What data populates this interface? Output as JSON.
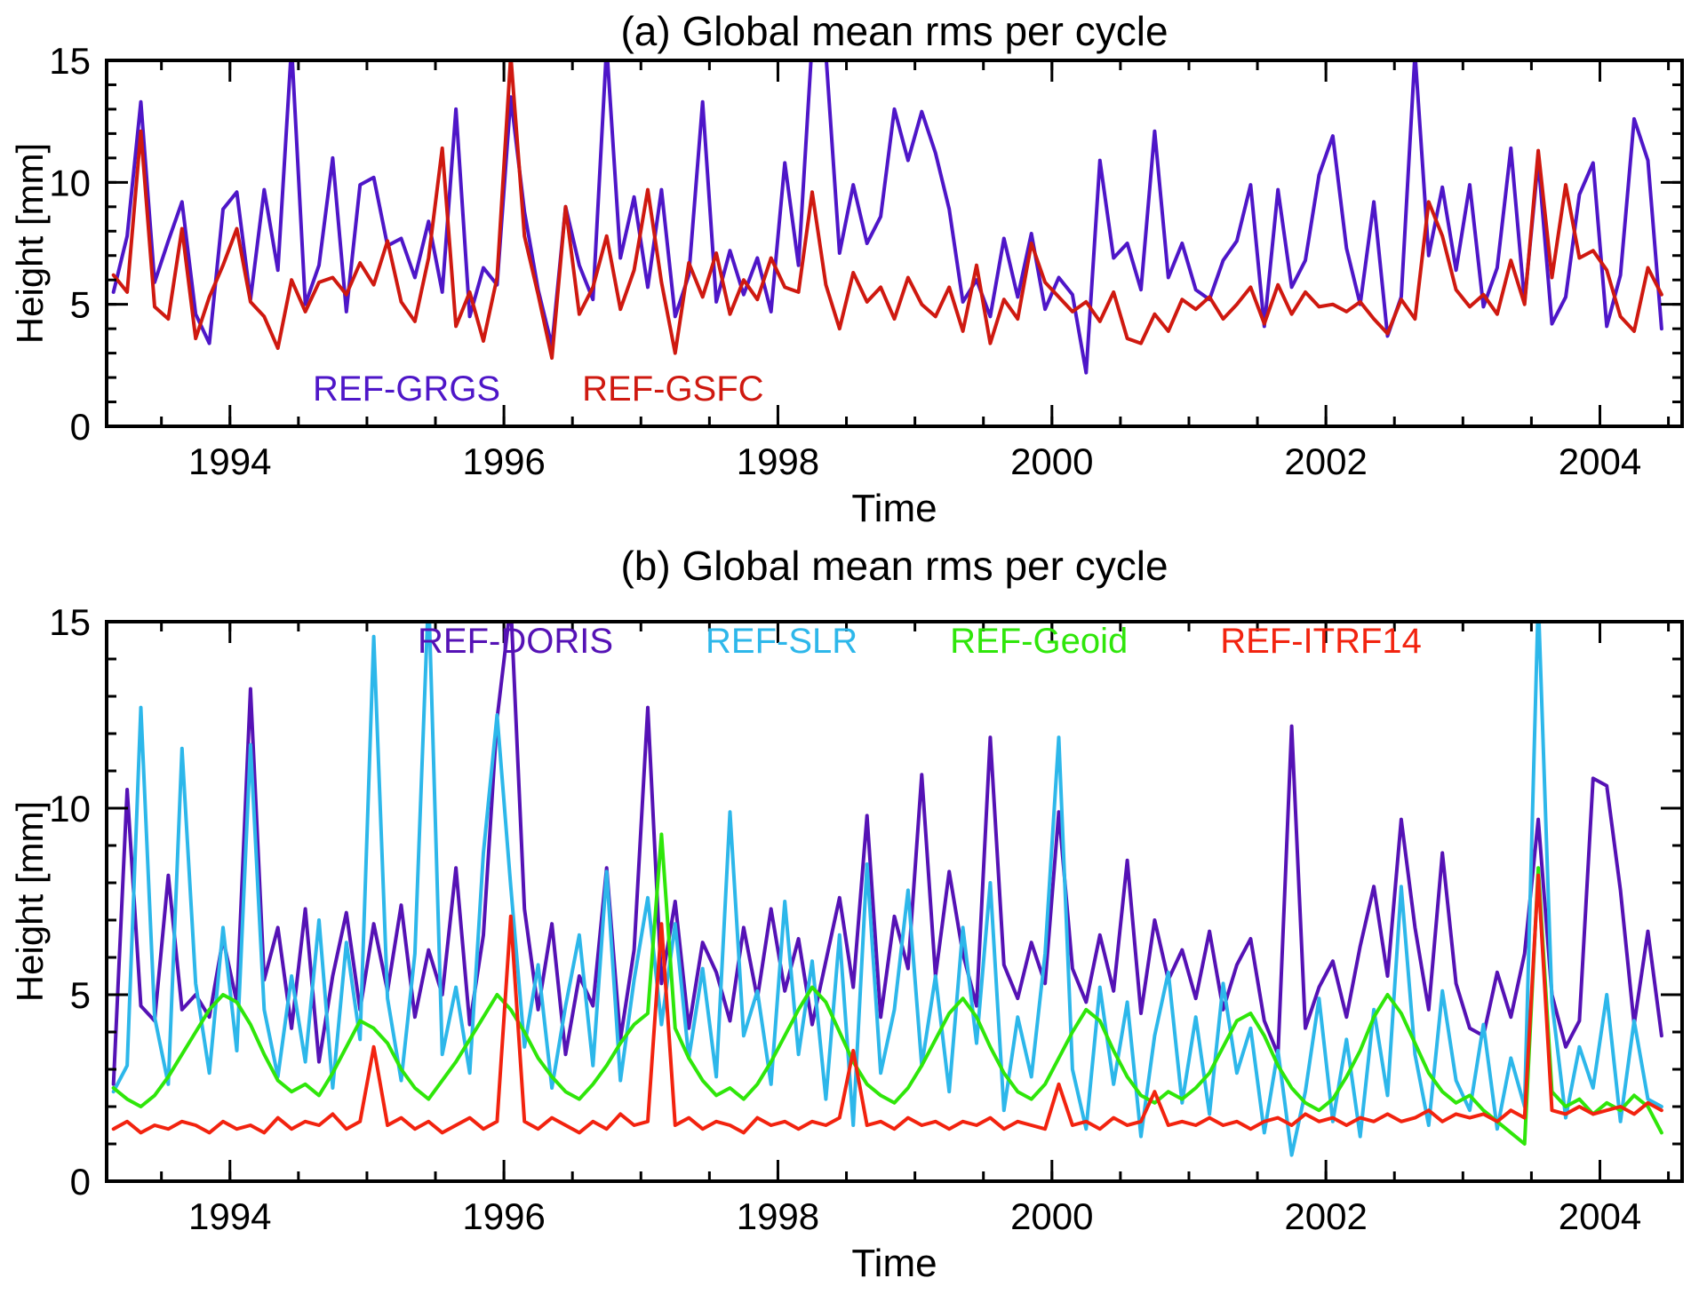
{
  "figure": {
    "panel_a": {
      "title": "(a) Global mean rms per cycle",
      "xlabel": "Time",
      "ylabel": "Height [mm]"
    },
    "panel_b": {
      "title": "(b) Global mean rms per cycle",
      "xlabel": "Time",
      "ylabel": "Height [mm]"
    }
  },
  "chart_data": [
    {
      "type": "line",
      "title": "(a) Global mean rms per cycle",
      "xlabel": "Time",
      "ylabel": "Height [mm]",
      "xlim": [
        1993.1,
        2004.6
      ],
      "ylim": [
        0,
        15
      ],
      "xticks": [
        1994,
        1996,
        1998,
        2000,
        2002,
        2004
      ],
      "xminor_step": 0.5,
      "yticks": [
        0,
        5,
        10,
        15
      ],
      "yminor_step": 1,
      "x_start": 1993.15,
      "x_step": 0.1,
      "grid": false,
      "legend_position": "inside-bottom",
      "series": [
        {
          "name": "REF-GRGS",
          "color": "#4e16c8",
          "values": [
            5.5,
            7.8,
            13.3,
            5.9,
            7.6,
            9.2,
            4.6,
            3.4,
            8.9,
            9.6,
            5.2,
            9.7,
            6.4,
            15.6,
            5.0,
            6.6,
            11.0,
            4.7,
            9.9,
            10.2,
            7.4,
            7.7,
            6.1,
            8.4,
            5.5,
            13.0,
            4.5,
            6.5,
            5.8,
            13.5,
            8.8,
            5.6,
            3.3,
            9.0,
            6.6,
            5.2,
            15.6,
            6.9,
            9.4,
            5.7,
            9.7,
            4.5,
            6.2,
            13.3,
            5.1,
            7.2,
            5.4,
            6.9,
            4.7,
            10.8,
            6.6,
            15.8,
            15.3,
            7.1,
            9.9,
            7.5,
            8.6,
            13.0,
            10.9,
            12.9,
            11.2,
            8.9,
            5.1,
            6.0,
            4.5,
            7.7,
            5.3,
            7.9,
            4.8,
            6.1,
            5.4,
            2.2,
            10.9,
            6.9,
            7.5,
            5.6,
            12.1,
            6.1,
            7.5,
            5.6,
            5.2,
            6.8,
            7.6,
            9.9,
            4.1,
            9.7,
            5.7,
            6.8,
            10.3,
            11.9,
            7.3,
            5.0,
            9.2,
            3.7,
            5.3,
            15.3,
            7.0,
            9.8,
            6.4,
            9.9,
            4.9,
            6.5,
            11.4,
            5.1,
            10.9,
            4.2,
            5.3,
            9.5,
            10.8,
            4.1,
            6.2,
            12.6,
            10.9,
            4.0
          ]
        },
        {
          "name": "REF-GSFC",
          "color": "#cf1910",
          "values": [
            6.2,
            5.5,
            12.1,
            4.9,
            4.4,
            8.1,
            3.6,
            5.3,
            6.6,
            8.1,
            5.1,
            4.5,
            3.2,
            6.0,
            4.7,
            5.9,
            6.1,
            5.4,
            6.7,
            5.8,
            7.6,
            5.1,
            4.3,
            6.9,
            11.4,
            4.1,
            5.5,
            3.5,
            6.1,
            15.2,
            7.8,
            5.4,
            2.8,
            9.0,
            4.6,
            5.7,
            7.8,
            4.8,
            6.4,
            9.7,
            5.9,
            3.0,
            6.7,
            5.3,
            7.1,
            4.6,
            6.0,
            5.2,
            6.9,
            5.7,
            5.5,
            9.6,
            5.8,
            4.0,
            6.3,
            5.1,
            5.7,
            4.4,
            6.1,
            5.0,
            4.5,
            5.7,
            3.9,
            6.6,
            3.4,
            5.2,
            4.4,
            7.5,
            5.9,
            5.3,
            4.7,
            5.1,
            4.3,
            5.5,
            3.6,
            3.4,
            4.6,
            3.9,
            5.2,
            4.8,
            5.3,
            4.4,
            5.0,
            5.7,
            4.2,
            5.8,
            4.6,
            5.5,
            4.9,
            5.0,
            4.7,
            5.1,
            4.4,
            3.8,
            5.2,
            4.4,
            9.2,
            7.8,
            5.6,
            4.9,
            5.4,
            4.6,
            6.8,
            5.0,
            11.3,
            6.1,
            9.9,
            6.9,
            7.2,
            6.4,
            4.5,
            3.9,
            6.5,
            5.4
          ]
        }
      ]
    },
    {
      "type": "line",
      "title": "(b) Global mean rms per cycle",
      "xlabel": "Time",
      "ylabel": "Height [mm]",
      "xlim": [
        1993.1,
        2004.6
      ],
      "ylim": [
        0,
        15
      ],
      "xticks": [
        1994,
        1996,
        1998,
        2000,
        2002,
        2004
      ],
      "xminor_step": 0.5,
      "yticks": [
        0,
        5,
        10,
        15
      ],
      "yminor_step": 1,
      "x_start": 1993.15,
      "x_step": 0.1,
      "grid": false,
      "legend_position": "inside-top",
      "series": [
        {
          "name": "REF-DORIS",
          "color": "#5512b5",
          "values": [
            2.6,
            10.5,
            4.7,
            4.3,
            8.2,
            4.6,
            5.0,
            4.4,
            6.5,
            4.8,
            13.2,
            5.4,
            6.8,
            4.1,
            7.3,
            3.2,
            5.5,
            7.2,
            4.6,
            6.9,
            5.1,
            7.4,
            4.4,
            6.2,
            5.0,
            8.4,
            4.2,
            6.6,
            12.4,
            15.5,
            7.3,
            4.6,
            6.9,
            3.4,
            5.5,
            4.7,
            8.4,
            3.8,
            6.2,
            12.7,
            5.3,
            7.5,
            4.1,
            6.4,
            5.6,
            4.3,
            6.8,
            4.9,
            7.3,
            5.1,
            6.5,
            4.2,
            5.9,
            7.6,
            5.2,
            9.8,
            4.4,
            7.1,
            5.7,
            10.9,
            5.5,
            8.3,
            6.1,
            4.7,
            11.9,
            5.8,
            4.9,
            6.4,
            5.3,
            9.9,
            5.7,
            4.8,
            6.6,
            5.1,
            8.6,
            4.5,
            7.0,
            5.4,
            6.2,
            4.9,
            6.7,
            4.6,
            5.8,
            6.5,
            4.3,
            3.4,
            12.2,
            4.1,
            5.2,
            5.9,
            4.4,
            6.3,
            7.9,
            5.5,
            9.7,
            6.8,
            4.6,
            8.8,
            5.3,
            4.1,
            3.9,
            5.6,
            4.4,
            6.1,
            9.7,
            5.0,
            3.6,
            4.3,
            10.8,
            10.6,
            7.8,
            4.2,
            6.7,
            3.9
          ]
        },
        {
          "name": "REF-SLR",
          "color": "#2db7ea",
          "values": [
            2.4,
            3.1,
            12.7,
            4.4,
            2.6,
            11.6,
            5.3,
            2.9,
            6.8,
            3.5,
            11.7,
            4.6,
            2.8,
            5.5,
            3.2,
            7.0,
            2.5,
            6.4,
            3.8,
            14.6,
            4.9,
            2.7,
            6.1,
            15.8,
            3.4,
            5.2,
            2.9,
            8.8,
            12.5,
            7.9,
            3.6,
            5.8,
            2.5,
            4.7,
            6.6,
            3.1,
            8.3,
            2.7,
            5.4,
            7.6,
            4.2,
            6.9,
            3.3,
            5.7,
            2.8,
            9.9,
            3.9,
            5.1,
            2.6,
            7.5,
            3.4,
            5.9,
            2.2,
            6.6,
            1.5,
            8.5,
            2.9,
            4.6,
            7.8,
            3.1,
            5.5,
            2.4,
            6.8,
            3.7,
            8.0,
            1.9,
            4.4,
            2.8,
            6.1,
            11.9,
            3.0,
            1.4,
            5.2,
            2.6,
            4.8,
            1.2,
            3.9,
            5.6,
            2.1,
            4.4,
            1.8,
            5.3,
            2.9,
            4.1,
            1.3,
            3.5,
            0.7,
            2.4,
            4.9,
            1.6,
            3.8,
            1.2,
            4.6,
            2.3,
            7.9,
            3.4,
            1.5,
            5.1,
            2.7,
            1.9,
            4.2,
            1.4,
            3.3,
            2.0,
            15.6,
            4.8,
            1.7,
            3.6,
            2.5,
            5.0,
            1.6,
            4.3,
            2.2,
            2.0
          ]
        },
        {
          "name": "REF-Geoid",
          "color": "#2fe60a",
          "values": [
            2.5,
            2.2,
            2.0,
            2.3,
            2.8,
            3.4,
            4.0,
            4.6,
            5.0,
            4.8,
            4.2,
            3.4,
            2.7,
            2.4,
            2.6,
            2.3,
            2.9,
            3.6,
            4.3,
            4.1,
            3.7,
            3.0,
            2.5,
            2.2,
            2.7,
            3.2,
            3.8,
            4.4,
            5.0,
            4.6,
            4.0,
            3.3,
            2.8,
            2.4,
            2.2,
            2.6,
            3.1,
            3.7,
            4.2,
            4.5,
            9.3,
            4.1,
            3.3,
            2.7,
            2.3,
            2.5,
            2.2,
            2.6,
            3.2,
            3.9,
            4.6,
            5.2,
            4.8,
            4.0,
            3.2,
            2.6,
            2.3,
            2.1,
            2.5,
            3.1,
            3.8,
            4.5,
            4.9,
            4.4,
            3.6,
            2.9,
            2.4,
            2.2,
            2.6,
            3.3,
            4.0,
            4.6,
            4.3,
            3.5,
            2.8,
            2.3,
            2.1,
            2.4,
            2.2,
            2.5,
            2.9,
            3.6,
            4.3,
            4.5,
            3.9,
            3.1,
            2.5,
            2.1,
            1.9,
            2.2,
            2.8,
            3.5,
            4.4,
            5.0,
            4.5,
            3.7,
            2.9,
            2.4,
            2.1,
            2.3,
            1.9,
            1.6,
            1.3,
            1.0,
            8.4,
            2.4,
            2.0,
            2.2,
            1.8,
            2.1,
            1.9,
            2.3,
            2.0,
            1.3
          ]
        },
        {
          "name": "REF-ITRF14",
          "color": "#f2230f",
          "values": [
            1.4,
            1.6,
            1.3,
            1.5,
            1.4,
            1.6,
            1.5,
            1.3,
            1.6,
            1.4,
            1.5,
            1.3,
            1.7,
            1.4,
            1.6,
            1.5,
            1.8,
            1.4,
            1.6,
            3.6,
            1.5,
            1.7,
            1.4,
            1.6,
            1.3,
            1.5,
            1.7,
            1.4,
            1.6,
            7.1,
            1.6,
            1.4,
            1.7,
            1.5,
            1.3,
            1.6,
            1.4,
            1.8,
            1.5,
            1.6,
            6.9,
            1.5,
            1.7,
            1.4,
            1.6,
            1.5,
            1.3,
            1.7,
            1.5,
            1.6,
            1.4,
            1.6,
            1.5,
            1.7,
            3.5,
            1.5,
            1.6,
            1.4,
            1.7,
            1.5,
            1.6,
            1.4,
            1.6,
            1.5,
            1.7,
            1.4,
            1.6,
            1.5,
            1.4,
            2.6,
            1.5,
            1.6,
            1.4,
            1.7,
            1.5,
            1.6,
            2.4,
            1.5,
            1.6,
            1.5,
            1.7,
            1.5,
            1.6,
            1.4,
            1.6,
            1.7,
            1.5,
            1.8,
            1.6,
            1.7,
            1.5,
            1.7,
            1.6,
            1.8,
            1.6,
            1.7,
            1.9,
            1.6,
            1.8,
            1.7,
            1.8,
            1.6,
            1.9,
            1.7,
            8.2,
            1.9,
            1.8,
            2.0,
            1.8,
            1.9,
            2.0,
            1.8,
            2.1,
            1.9
          ]
        }
      ]
    }
  ]
}
